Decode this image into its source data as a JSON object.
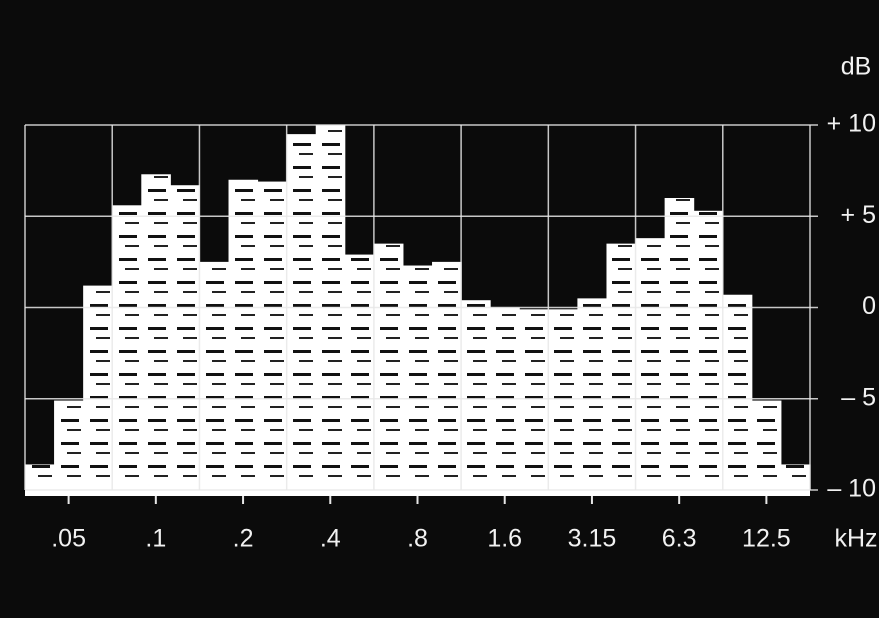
{
  "chart_data": {
    "type": "bar",
    "y_label": "dB",
    "x_label": "kHz",
    "categories": [
      null,
      ".05",
      null,
      null,
      ".1",
      null,
      null,
      ".2",
      null,
      null,
      ".4",
      null,
      null,
      ".8",
      null,
      null,
      "1.6",
      null,
      null,
      "3.15",
      null,
      null,
      "6.3",
      null,
      null,
      "12.5",
      null
    ],
    "values": [
      -8.6,
      -5.1,
      1.2,
      5.6,
      7.3,
      6.7,
      2.5,
      7.0,
      6.9,
      9.5,
      10,
      2.9,
      3.5,
      2.3,
      2.5,
      0.4,
      0,
      -0.1,
      -0.1,
      0.5,
      3.5,
      3.8,
      6.0,
      5.3,
      0.7,
      -5.1,
      -8.6
    ],
    "color": "#ffffff",
    "ylim": [
      -10,
      10
    ],
    "yticks": [
      {
        "value": -10,
        "label": "– 10"
      },
      {
        "value": -5,
        "label": "– 5"
      },
      0,
      {
        "value": 5,
        "label": "+ 5"
      },
      {
        "value": 10,
        "label": "+ 10"
      }
    ],
    "grid": true
  }
}
